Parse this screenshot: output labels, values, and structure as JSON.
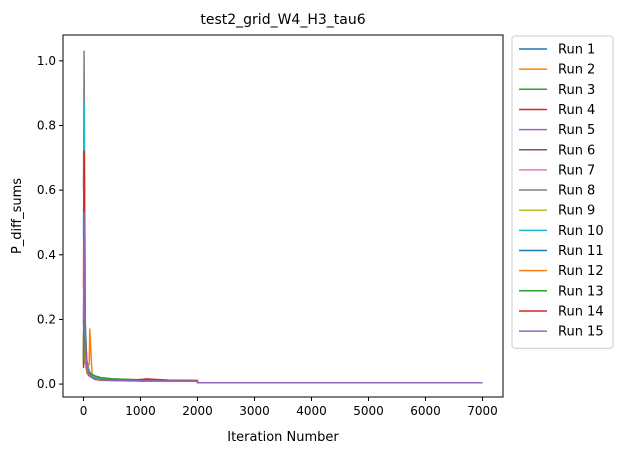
{
  "chart_data": {
    "type": "line",
    "title": "test2_grid_W4_H3_tau6",
    "xlabel": "Iteration Number",
    "ylabel": "P_diff_sums",
    "xlim": [
      -360,
      7360
    ],
    "ylim": [
      -0.04,
      1.08
    ],
    "xticks": [
      0,
      1000,
      2000,
      3000,
      4000,
      5000,
      6000,
      7000
    ],
    "xtick_labels": [
      "0",
      "1000",
      "2000",
      "3000",
      "4000",
      "5000",
      "6000",
      "7000"
    ],
    "yticks": [
      0.0,
      0.2,
      0.4,
      0.6,
      0.8,
      1.0
    ],
    "ytick_labels": [
      "0.0",
      "0.2",
      "0.4",
      "0.6",
      "0.8",
      "1.0"
    ],
    "grid": false,
    "legend_position": "outside-right",
    "series": [
      {
        "name": "Run 1",
        "color": "#1f77b4",
        "x": [
          0,
          10,
          30,
          60,
          100,
          150,
          200,
          300,
          500,
          800,
          1000,
          1500,
          1999,
          2000,
          3000,
          4000,
          5000,
          6000,
          7000
        ],
        "y": [
          0.18,
          0.4,
          0.15,
          0.07,
          0.04,
          0.025,
          0.02,
          0.015,
          0.013,
          0.012,
          0.011,
          0.01,
          0.01,
          0.004,
          0.004,
          0.004,
          0.004,
          0.004,
          0.004
        ]
      },
      {
        "name": "Run 2",
        "color": "#ff7f0e",
        "x": [
          0,
          10,
          30,
          60,
          100,
          110,
          150,
          200,
          300,
          500,
          800,
          1000,
          1500,
          1999,
          2000,
          3000,
          4000,
          5000,
          6000,
          7000
        ],
        "y": [
          0.12,
          0.3,
          0.1,
          0.05,
          0.06,
          0.17,
          0.03,
          0.02,
          0.015,
          0.013,
          0.012,
          0.011,
          0.01,
          0.01,
          0.004,
          0.004,
          0.004,
          0.004,
          0.004,
          0.004
        ]
      },
      {
        "name": "Run 3",
        "color": "#2ca02c",
        "x": [
          0,
          10,
          30,
          60,
          100,
          150,
          200,
          300,
          500,
          800,
          1000,
          1500,
          1999,
          2000,
          3000,
          4000,
          5000,
          6000,
          7000
        ],
        "y": [
          0.06,
          0.25,
          0.12,
          0.05,
          0.035,
          0.03,
          0.025,
          0.02,
          0.016,
          0.014,
          0.013,
          0.012,
          0.011,
          0.004,
          0.004,
          0.004,
          0.004,
          0.004,
          0.004
        ]
      },
      {
        "name": "Run 4",
        "color": "#d62728",
        "x": [
          0,
          10,
          30,
          60,
          100,
          150,
          200,
          300,
          500,
          800,
          1000,
          1500,
          1999,
          2000,
          3000,
          4000,
          5000,
          6000,
          7000
        ],
        "y": [
          0.05,
          0.35,
          0.1,
          0.04,
          0.03,
          0.02,
          0.015,
          0.012,
          0.012,
          0.012,
          0.014,
          0.012,
          0.01,
          0.004,
          0.004,
          0.004,
          0.004,
          0.004,
          0.004
        ]
      },
      {
        "name": "Run 5",
        "color": "#9467bd",
        "x": [
          0,
          10,
          30,
          60,
          100,
          150,
          200,
          300,
          500,
          800,
          1000,
          1500,
          1999,
          2000,
          3000,
          4000,
          5000,
          6000,
          7000
        ],
        "y": [
          0.1,
          0.28,
          0.08,
          0.04,
          0.03,
          0.02,
          0.015,
          0.012,
          0.011,
          0.01,
          0.01,
          0.009,
          0.009,
          0.004,
          0.004,
          0.004,
          0.004,
          0.004,
          0.004
        ]
      },
      {
        "name": "Run 6",
        "color": "#8c564b",
        "x": [
          0,
          10,
          30,
          60,
          100,
          150,
          200,
          300,
          500,
          800,
          1000,
          1500,
          1999,
          2000,
          3000,
          4000,
          5000,
          6000,
          7000
        ],
        "y": [
          0.08,
          0.2,
          0.07,
          0.035,
          0.025,
          0.02,
          0.015,
          0.012,
          0.011,
          0.01,
          0.01,
          0.009,
          0.009,
          0.004,
          0.004,
          0.004,
          0.004,
          0.004,
          0.004
        ]
      },
      {
        "name": "Run 7",
        "color": "#e377c2",
        "x": [
          0,
          10,
          30,
          60,
          100,
          150,
          200,
          300,
          500,
          800,
          1000,
          1500,
          1999,
          2000,
          3000,
          4000,
          5000,
          6000,
          7000
        ],
        "y": [
          0.15,
          0.22,
          0.08,
          0.04,
          0.03,
          0.02,
          0.016,
          0.013,
          0.012,
          0.011,
          0.01,
          0.01,
          0.009,
          0.004,
          0.004,
          0.004,
          0.004,
          0.004,
          0.004
        ]
      },
      {
        "name": "Run 8",
        "color": "#7f7f7f",
        "x": [
          0,
          10,
          30,
          60,
          100,
          150,
          200,
          300,
          500,
          800,
          1000,
          1500,
          1999,
          2000,
          3000,
          4000,
          5000,
          6000,
          7000
        ],
        "y": [
          0.6,
          1.03,
          0.2,
          0.06,
          0.035,
          0.025,
          0.02,
          0.015,
          0.012,
          0.011,
          0.01,
          0.01,
          0.009,
          0.004,
          0.004,
          0.004,
          0.004,
          0.004,
          0.004
        ]
      },
      {
        "name": "Run 9",
        "color": "#bcbd22",
        "x": [
          0,
          10,
          30,
          60,
          100,
          150,
          200,
          300,
          500,
          800,
          1000,
          1500,
          1999,
          2000,
          3000,
          4000,
          5000,
          6000,
          7000
        ],
        "y": [
          0.1,
          0.24,
          0.09,
          0.04,
          0.03,
          0.02,
          0.016,
          0.013,
          0.012,
          0.011,
          0.01,
          0.01,
          0.009,
          0.004,
          0.004,
          0.004,
          0.004,
          0.004,
          0.004
        ]
      },
      {
        "name": "Run 10",
        "color": "#17becf",
        "x": [
          0,
          10,
          30,
          60,
          100,
          150,
          200,
          300,
          500,
          800,
          1000,
          1500,
          1999,
          2000,
          3000,
          4000,
          5000,
          6000,
          7000
        ],
        "y": [
          0.45,
          0.87,
          0.18,
          0.06,
          0.035,
          0.025,
          0.02,
          0.015,
          0.012,
          0.011,
          0.01,
          0.01,
          0.009,
          0.004,
          0.004,
          0.004,
          0.004,
          0.004,
          0.004
        ]
      },
      {
        "name": "Run 11",
        "color": "#1f77b4",
        "x": [
          0,
          10,
          30,
          60,
          100,
          150,
          200,
          300,
          500,
          800,
          1000,
          1500,
          1999,
          2000,
          3000,
          4000,
          5000,
          6000,
          7000
        ],
        "y": [
          0.09,
          0.26,
          0.09,
          0.04,
          0.03,
          0.02,
          0.016,
          0.013,
          0.012,
          0.011,
          0.01,
          0.01,
          0.009,
          0.004,
          0.004,
          0.004,
          0.004,
          0.004,
          0.004
        ]
      },
      {
        "name": "Run 12",
        "color": "#ff7f0e",
        "x": [
          0,
          10,
          30,
          60,
          100,
          150,
          200,
          300,
          500,
          800,
          1000,
          1500,
          1999,
          2000,
          3000,
          4000,
          5000,
          6000,
          7000
        ],
        "y": [
          0.11,
          0.22,
          0.08,
          0.04,
          0.03,
          0.02,
          0.016,
          0.013,
          0.012,
          0.011,
          0.01,
          0.01,
          0.009,
          0.004,
          0.004,
          0.004,
          0.004,
          0.004,
          0.004
        ]
      },
      {
        "name": "Run 13",
        "color": "#2ca02c",
        "x": [
          0,
          10,
          30,
          60,
          100,
          150,
          200,
          300,
          500,
          800,
          1000,
          1500,
          1999,
          2000,
          3000,
          4000,
          5000,
          6000,
          7000
        ],
        "y": [
          0.07,
          0.3,
          0.11,
          0.05,
          0.035,
          0.03,
          0.025,
          0.02,
          0.016,
          0.014,
          0.013,
          0.012,
          0.011,
          0.004,
          0.004,
          0.004,
          0.004,
          0.004,
          0.004
        ]
      },
      {
        "name": "Run 14",
        "color": "#d62728",
        "x": [
          0,
          10,
          30,
          60,
          100,
          150,
          200,
          300,
          500,
          800,
          1000,
          1100,
          1500,
          1999,
          2000,
          3000,
          4000,
          5000,
          6000,
          7000
        ],
        "y": [
          0.3,
          0.72,
          0.15,
          0.05,
          0.03,
          0.02,
          0.016,
          0.013,
          0.013,
          0.012,
          0.013,
          0.016,
          0.012,
          0.01,
          0.004,
          0.004,
          0.004,
          0.004,
          0.004,
          0.004
        ]
      },
      {
        "name": "Run 15",
        "color": "#9467bd",
        "x": [
          0,
          10,
          30,
          60,
          100,
          150,
          200,
          300,
          500,
          800,
          1000,
          1500,
          1999,
          2000,
          3000,
          4000,
          5000,
          6000,
          7000
        ],
        "y": [
          0.2,
          0.53,
          0.12,
          0.05,
          0.03,
          0.02,
          0.016,
          0.013,
          0.012,
          0.011,
          0.01,
          0.01,
          0.009,
          0.004,
          0.004,
          0.004,
          0.004,
          0.004,
          0.004
        ]
      }
    ]
  }
}
